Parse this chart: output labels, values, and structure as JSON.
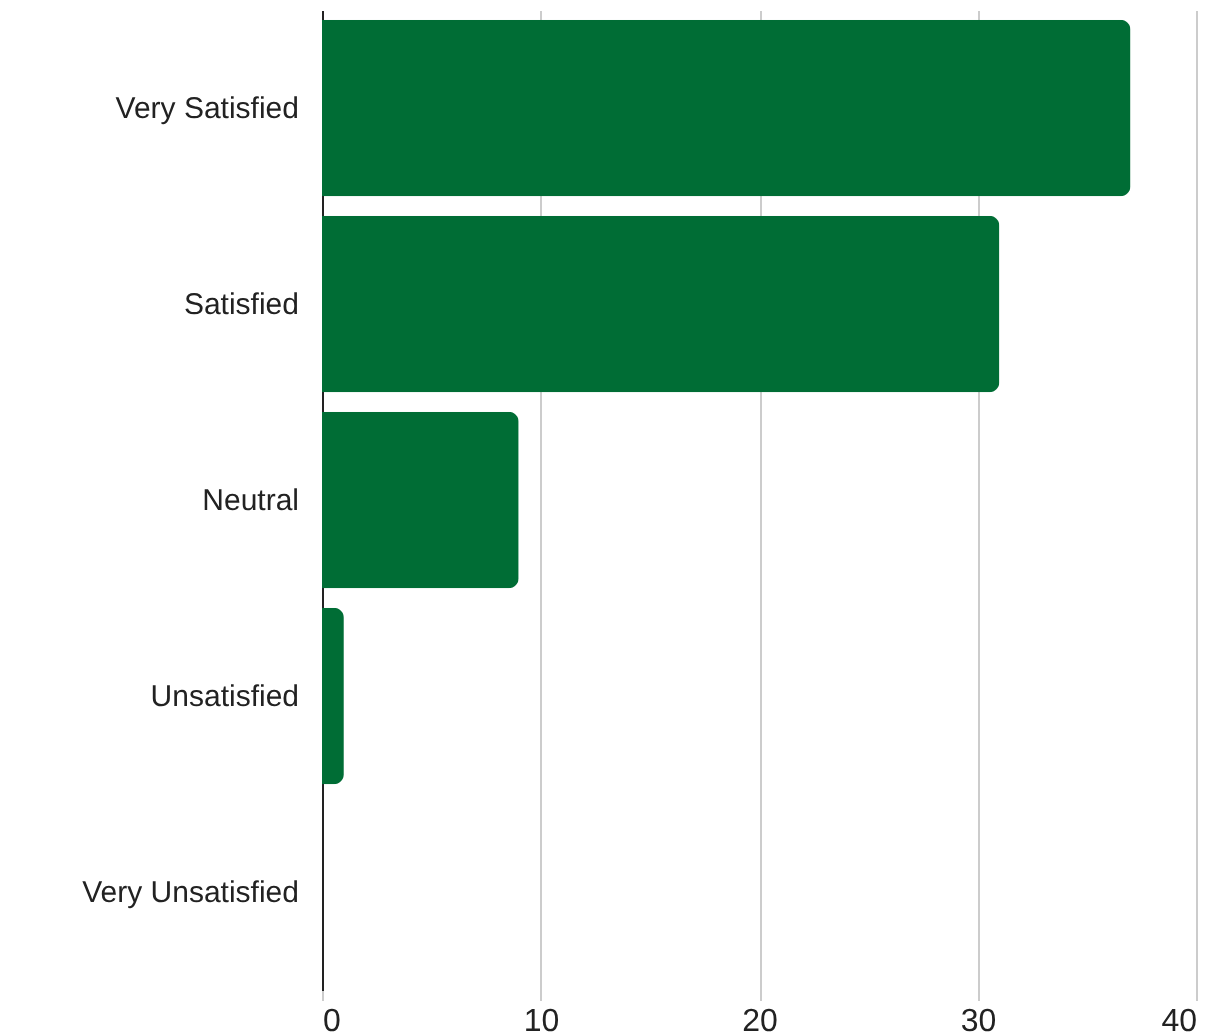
{
  "chart_data": {
    "type": "bar",
    "orientation": "horizontal",
    "categories": [
      "Very Satisfied",
      "Satisfied",
      "Neutral",
      "Unsatisfied",
      "Very Unsatisfied"
    ],
    "values": [
      37,
      31,
      9,
      1,
      0
    ],
    "color": "#006d35",
    "xlim": [
      0,
      40
    ],
    "xticks": [
      0,
      10,
      20,
      30,
      40
    ],
    "grid": "x"
  }
}
